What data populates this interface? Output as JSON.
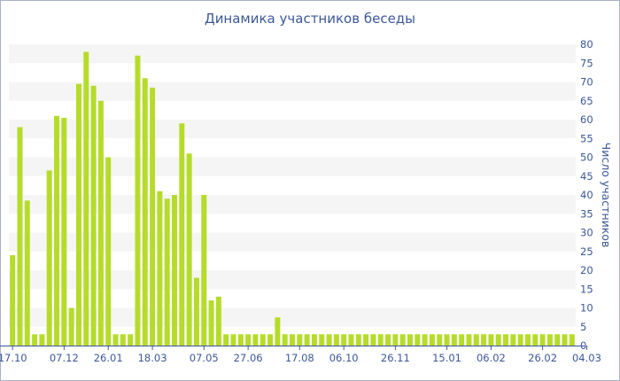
{
  "chart_data": {
    "type": "bar",
    "title": "Динамика участников беседы",
    "xlabel": "",
    "ylabel": "Число участников",
    "ylim": [
      0,
      80
    ],
    "yticks": [
      0,
      5,
      10,
      15,
      20,
      25,
      30,
      35,
      40,
      45,
      50,
      55,
      60,
      65,
      70,
      75,
      80
    ],
    "y_axis_side": "right",
    "grid": "alternating horizontal bands",
    "bar_color": "#b5dc2a",
    "band_color": "#f5f5f5",
    "text_color": "#3b5898",
    "x_tick_labels": [
      {
        "bar_index": 0,
        "label": "17.10"
      },
      {
        "bar_index": 7,
        "label": "07.12"
      },
      {
        "bar_index": 13,
        "label": "26.01"
      },
      {
        "bar_index": 19,
        "label": "18.03"
      },
      {
        "bar_index": 26,
        "label": "07.05"
      },
      {
        "bar_index": 32,
        "label": "27.06"
      },
      {
        "bar_index": 39,
        "label": "17.08"
      },
      {
        "bar_index": 45,
        "label": "06.10"
      },
      {
        "bar_index": 52,
        "label": "26.11"
      },
      {
        "bar_index": 59,
        "label": "15.01"
      },
      {
        "bar_index": 65,
        "label": "06.02"
      },
      {
        "bar_index": 72,
        "label": "26.02"
      },
      {
        "bar_index": 78,
        "label": "04.03"
      }
    ],
    "values": [
      24,
      58,
      38.5,
      3,
      3,
      46.5,
      61,
      60.5,
      10,
      69.5,
      78,
      69,
      65,
      50,
      3,
      3,
      3,
      77,
      71,
      68.5,
      41,
      39,
      40,
      59,
      51,
      18,
      40,
      12,
      13,
      3,
      3,
      3,
      3,
      3,
      3,
      3,
      7.5,
      3,
      3,
      3,
      3,
      3,
      3,
      3,
      3,
      3,
      3,
      3,
      3,
      3,
      3,
      3,
      3,
      3,
      3,
      3,
      3,
      3,
      3,
      3,
      3,
      3,
      3,
      3,
      3,
      3,
      3,
      3,
      3,
      3,
      3,
      3,
      3,
      3,
      3,
      3,
      3
    ]
  }
}
